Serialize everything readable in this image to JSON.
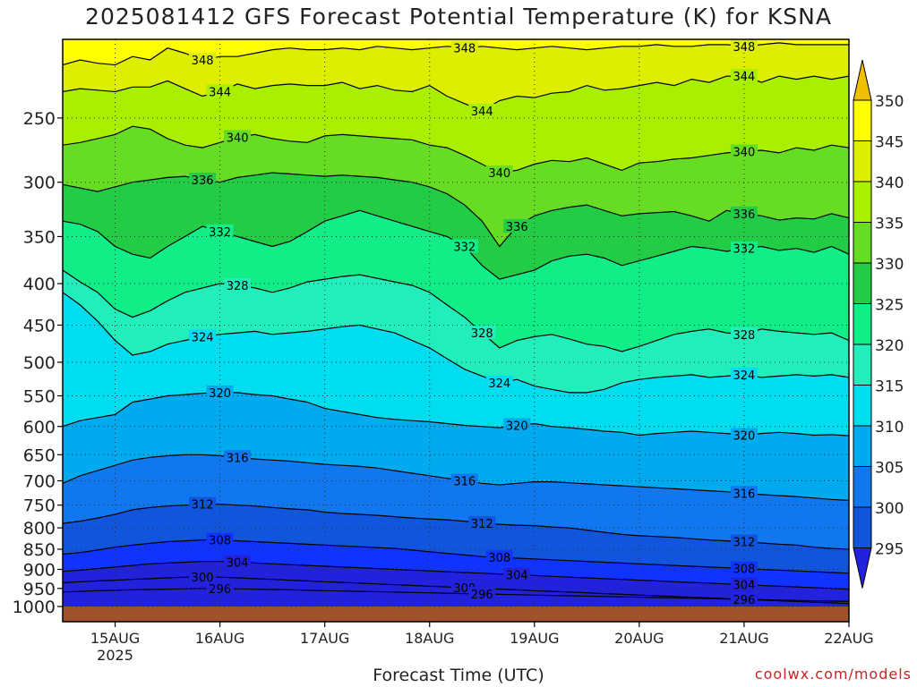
{
  "title": "2025081412 GFS Forecast Potential Temperature (K) for KSNA",
  "credit": "coolwx.com/models",
  "chart_data": {
    "type": "heatmap",
    "title": "2025081412 GFS Forecast Potential Temperature (K) for KSNA",
    "xlabel": "Forecast Time (UTC)",
    "ylabel": "",
    "y_scale": "log",
    "y_inverted": true,
    "ylim": [
      1000,
      200
    ],
    "xlim": [
      14.5,
      22.0
    ],
    "x_ticks": [
      {
        "value": 15,
        "label": "15AUG",
        "sublabel": "2025"
      },
      {
        "value": 16,
        "label": "16AUG"
      },
      {
        "value": 17,
        "label": "17AUG"
      },
      {
        "value": 18,
        "label": "18AUG"
      },
      {
        "value": 19,
        "label": "19AUG"
      },
      {
        "value": 20,
        "label": "20AUG"
      },
      {
        "value": 21,
        "label": "21AUG"
      },
      {
        "value": 22,
        "label": "22AUG"
      }
    ],
    "y_ticks": [
      "250",
      "300",
      "350",
      "400",
      "450",
      "500",
      "550",
      "600",
      "650",
      "700",
      "750",
      "800",
      "850",
      "900",
      "950",
      "1000"
    ],
    "grid": true,
    "colorbar": {
      "labels": [
        "350",
        "345",
        "340",
        "335",
        "330",
        "325",
        "320",
        "315",
        "310",
        "305",
        "300",
        "295"
      ],
      "colors": [
        "#fffe00",
        "#ddee00",
        "#aaee00",
        "#66dd22",
        "#22cc44",
        "#11ee88",
        "#22eebb",
        "#00ddee",
        "#00aaee",
        "#1177ee",
        "#1155dd",
        "#1133ff",
        "#2222dd"
      ]
    },
    "ground_color": "#a0522d",
    "contours": [
      {
        "level": 348,
        "label": "348",
        "pressure": [
          215,
          212,
          214,
          215,
          210,
          212,
          205,
          208,
          212,
          210,
          210,
          208,
          206,
          205,
          206,
          206,
          205,
          206,
          204,
          205,
          206,
          205,
          204,
          205,
          204,
          205,
          206,
          205,
          204,
          205,
          206,
          205,
          204,
          204,
          203,
          204,
          204,
          203,
          203,
          204,
          203,
          202,
          203,
          203,
          203,
          203
        ]
      },
      {
        "level": 344,
        "label": "344",
        "pressure": [
          232,
          230,
          231,
          232,
          229,
          229,
          225,
          230,
          235,
          232,
          227,
          230,
          228,
          227,
          228,
          228,
          226,
          230,
          228,
          231,
          232,
          228,
          235,
          240,
          245,
          238,
          235,
          236,
          233,
          232,
          228,
          231,
          230,
          228,
          226,
          228,
          224,
          226,
          222,
          222,
          226,
          222,
          224,
          222,
          224,
          222
        ]
      },
      {
        "level": 340,
        "label": "340",
        "pressure": [
          270,
          268,
          265,
          262,
          256,
          258,
          265,
          270,
          272,
          268,
          264,
          262,
          265,
          267,
          268,
          263,
          262,
          263,
          264,
          265,
          266,
          270,
          272,
          278,
          285,
          292,
          290,
          285,
          282,
          283,
          280,
          285,
          290,
          284,
          283,
          281,
          280,
          278,
          276,
          275,
          274,
          276,
          272,
          274,
          270,
          272
        ]
      },
      {
        "level": 336,
        "label": "336",
        "pressure": [
          302,
          305,
          308,
          304,
          300,
          298,
          296,
          295,
          298,
          300,
          296,
          294,
          292,
          293,
          294,
          295,
          294,
          295,
          296,
          298,
          300,
          304,
          310,
          320,
          335,
          360,
          340,
          330,
          325,
          322,
          320,
          325,
          330,
          328,
          327,
          326,
          330,
          335,
          325,
          328,
          330,
          334,
          332,
          333,
          328,
          332
        ]
      },
      {
        "level": 332,
        "label": "332",
        "pressure": [
          335,
          338,
          345,
          360,
          368,
          372,
          360,
          350,
          340,
          345,
          350,
          355,
          360,
          355,
          345,
          335,
          330,
          325,
          330,
          335,
          340,
          345,
          350,
          360,
          380,
          395,
          390,
          385,
          375,
          370,
          368,
          372,
          380,
          375,
          370,
          365,
          360,
          362,
          365,
          362,
          360,
          364,
          362,
          366,
          360,
          368
        ]
      },
      {
        "level": 328,
        "label": "328",
        "pressure": [
          385,
          398,
          410,
          430,
          440,
          432,
          420,
          410,
          405,
          400,
          402,
          405,
          410,
          405,
          398,
          395,
          392,
          390,
          394,
          398,
          402,
          410,
          425,
          440,
          460,
          480,
          470,
          465,
          462,
          468,
          475,
          478,
          485,
          478,
          470,
          462,
          458,
          455,
          460,
          462,
          455,
          458,
          460,
          462,
          460,
          470
        ]
      },
      {
        "level": 324,
        "label": "324",
        "pressure": [
          410,
          425,
          445,
          470,
          490,
          485,
          475,
          470,
          465,
          462,
          460,
          458,
          462,
          460,
          458,
          455,
          452,
          450,
          455,
          460,
          470,
          480,
          495,
          510,
          520,
          530,
          525,
          535,
          540,
          545,
          545,
          540,
          530,
          525,
          522,
          520,
          518,
          522,
          520,
          518,
          522,
          520,
          518,
          520,
          518,
          522
        ]
      },
      {
        "level": 320,
        "label": "320",
        "pressure": [
          600,
          590,
          585,
          580,
          560,
          555,
          550,
          548,
          546,
          545,
          545,
          548,
          550,
          555,
          560,
          570,
          575,
          580,
          585,
          588,
          590,
          592,
          595,
          598,
          600,
          602,
          598,
          595,
          600,
          602,
          605,
          608,
          610,
          615,
          612,
          610,
          608,
          610,
          612,
          615,
          612,
          610,
          612,
          615,
          614,
          616
        ]
      },
      {
        "level": 316,
        "label": "316",
        "pressure": [
          705,
          690,
          680,
          670,
          660,
          655,
          652,
          650,
          650,
          652,
          655,
          658,
          660,
          662,
          665,
          668,
          670,
          672,
          675,
          680,
          685,
          690,
          695,
          700,
          705,
          708,
          705,
          702,
          702,
          704,
          706,
          708,
          710,
          712,
          714,
          716,
          718,
          720,
          722,
          725,
          728,
          730,
          732,
          735,
          738,
          740
        ]
      },
      {
        "level": 312,
        "label": "312",
        "pressure": [
          790,
          785,
          778,
          770,
          760,
          755,
          752,
          750,
          748,
          748,
          750,
          752,
          755,
          758,
          760,
          765,
          768,
          770,
          772,
          775,
          778,
          780,
          782,
          785,
          790,
          792,
          794,
          795,
          798,
          800,
          805,
          810,
          815,
          818,
          820,
          822,
          825,
          828,
          830,
          832,
          835,
          838,
          840,
          845,
          848,
          850
        ]
      },
      {
        "level": 308,
        "label": "308",
        "pressure": [
          862,
          858,
          852,
          845,
          840,
          836,
          832,
          830,
          828,
          828,
          830,
          832,
          834,
          836,
          838,
          840,
          842,
          844,
          846,
          848,
          852,
          856,
          860,
          864,
          868,
          870,
          872,
          874,
          876,
          878,
          880,
          882,
          884,
          886,
          888,
          890,
          892,
          894,
          896,
          898,
          900,
          902,
          904,
          906,
          908,
          910
        ]
      },
      {
        "level": 304,
        "label": "304",
        "pressure": [
          905,
          902,
          898,
          894,
          890,
          886,
          884,
          882,
          880,
          880,
          882,
          884,
          886,
          888,
          890,
          892,
          894,
          896,
          898,
          900,
          902,
          904,
          906,
          908,
          910,
          912,
          914,
          916,
          918,
          920,
          922,
          924,
          926,
          928,
          930,
          932,
          934,
          936,
          938,
          940,
          942,
          944,
          946,
          948,
          950,
          952
        ]
      },
      {
        "level": 300,
        "label": "300",
        "pressure": [
          935,
          932,
          930,
          928,
          926,
          924,
          922,
          920,
          920,
          920,
          922,
          924,
          926,
          928,
          930,
          932,
          934,
          936,
          938,
          940,
          942,
          944,
          946,
          948,
          950,
          952,
          954,
          956,
          958,
          960,
          962,
          964,
          966,
          968,
          970,
          972,
          974,
          976,
          978,
          980,
          982,
          984,
          986,
          988,
          990,
          992
        ]
      },
      {
        "level": 296,
        "label": "296",
        "pressure": [
          960,
          958,
          956,
          955,
          954,
          953,
          952,
          951,
          950,
          950,
          951,
          952,
          953,
          954,
          955,
          956,
          957,
          958,
          959,
          960,
          961,
          962,
          963,
          964,
          965,
          966,
          967,
          968,
          969,
          970,
          971,
          972,
          973,
          974,
          975,
          976,
          977,
          978,
          979,
          980,
          981,
          982,
          983,
          984,
          985,
          986
        ]
      }
    ]
  }
}
